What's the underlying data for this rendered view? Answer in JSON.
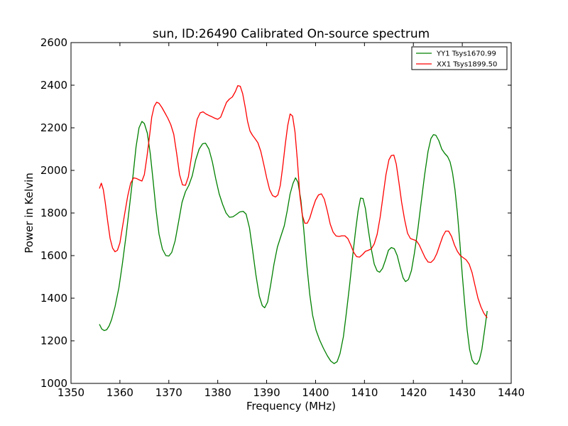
{
  "chart_data": {
    "type": "line",
    "title": "sun, ID:26490 Calibrated On-source spectrum",
    "xlabel": "Frequency (MHz)",
    "ylabel": "Power in Kelvin",
    "xlim": [
      1350,
      1440
    ],
    "ylim": [
      1000,
      2600
    ],
    "xticks": [
      1350,
      1360,
      1370,
      1380,
      1390,
      1400,
      1410,
      1420,
      1430,
      1440
    ],
    "yticks": [
      1000,
      1200,
      1400,
      1600,
      1800,
      2000,
      2200,
      2400,
      2600
    ],
    "grid": false,
    "legend_position": "top-right",
    "series": [
      {
        "name": "YY1 Tsys1670.99",
        "color": "#008000",
        "points": [
          [
            1355.8,
            1278
          ],
          [
            1356.3,
            1255
          ],
          [
            1356.8,
            1248
          ],
          [
            1357.3,
            1252
          ],
          [
            1357.8,
            1270
          ],
          [
            1358.3,
            1300
          ],
          [
            1359.0,
            1360
          ],
          [
            1359.8,
            1450
          ],
          [
            1360.5,
            1560
          ],
          [
            1361.3,
            1700
          ],
          [
            1362.0,
            1840
          ],
          [
            1362.7,
            1980
          ],
          [
            1363.3,
            2110
          ],
          [
            1363.9,
            2200
          ],
          [
            1364.5,
            2230
          ],
          [
            1365.0,
            2220
          ],
          [
            1365.6,
            2175
          ],
          [
            1366.2,
            2080
          ],
          [
            1366.8,
            1950
          ],
          [
            1367.4,
            1810
          ],
          [
            1368.0,
            1700
          ],
          [
            1368.7,
            1630
          ],
          [
            1369.4,
            1600
          ],
          [
            1370.0,
            1598
          ],
          [
            1370.6,
            1615
          ],
          [
            1371.3,
            1670
          ],
          [
            1372.0,
            1760
          ],
          [
            1372.7,
            1850
          ],
          [
            1373.4,
            1900
          ],
          [
            1374.1,
            1930
          ],
          [
            1374.8,
            1975
          ],
          [
            1375.5,
            2050
          ],
          [
            1376.2,
            2100
          ],
          [
            1376.9,
            2125
          ],
          [
            1377.5,
            2128
          ],
          [
            1378.2,
            2100
          ],
          [
            1378.9,
            2040
          ],
          [
            1379.6,
            1960
          ],
          [
            1380.3,
            1890
          ],
          [
            1381.0,
            1840
          ],
          [
            1381.7,
            1800
          ],
          [
            1382.4,
            1780
          ],
          [
            1383.1,
            1782
          ],
          [
            1383.8,
            1793
          ],
          [
            1384.5,
            1805
          ],
          [
            1385.2,
            1808
          ],
          [
            1385.8,
            1795
          ],
          [
            1386.5,
            1730
          ],
          [
            1387.1,
            1630
          ],
          [
            1387.8,
            1510
          ],
          [
            1388.5,
            1410
          ],
          [
            1389.1,
            1365
          ],
          [
            1389.6,
            1355
          ],
          [
            1390.2,
            1382
          ],
          [
            1390.8,
            1460
          ],
          [
            1391.5,
            1560
          ],
          [
            1392.2,
            1640
          ],
          [
            1392.9,
            1690
          ],
          [
            1393.6,
            1740
          ],
          [
            1394.2,
            1810
          ],
          [
            1394.8,
            1890
          ],
          [
            1395.4,
            1940
          ],
          [
            1395.9,
            1965
          ],
          [
            1396.4,
            1945
          ],
          [
            1397.0,
            1860
          ],
          [
            1397.6,
            1720
          ],
          [
            1398.2,
            1560
          ],
          [
            1398.8,
            1420
          ],
          [
            1399.4,
            1320
          ],
          [
            1400.1,
            1250
          ],
          [
            1400.8,
            1205
          ],
          [
            1401.6,
            1165
          ],
          [
            1402.4,
            1130
          ],
          [
            1403.1,
            1105
          ],
          [
            1403.8,
            1093
          ],
          [
            1404.4,
            1102
          ],
          [
            1405.0,
            1140
          ],
          [
            1405.7,
            1220
          ],
          [
            1406.3,
            1330
          ],
          [
            1407.0,
            1470
          ],
          [
            1407.6,
            1600
          ],
          [
            1408.2,
            1720
          ],
          [
            1408.7,
            1810
          ],
          [
            1409.2,
            1870
          ],
          [
            1409.7,
            1868
          ],
          [
            1410.2,
            1820
          ],
          [
            1410.8,
            1720
          ],
          [
            1411.4,
            1630
          ],
          [
            1412.0,
            1560
          ],
          [
            1412.6,
            1528
          ],
          [
            1413.1,
            1522
          ],
          [
            1413.7,
            1540
          ],
          [
            1414.3,
            1580
          ],
          [
            1414.9,
            1625
          ],
          [
            1415.5,
            1638
          ],
          [
            1416.1,
            1632
          ],
          [
            1416.7,
            1600
          ],
          [
            1417.3,
            1545
          ],
          [
            1417.9,
            1495
          ],
          [
            1418.4,
            1478
          ],
          [
            1419.0,
            1488
          ],
          [
            1419.6,
            1530
          ],
          [
            1420.2,
            1610
          ],
          [
            1420.9,
            1720
          ],
          [
            1421.6,
            1850
          ],
          [
            1422.3,
            1980
          ],
          [
            1423.0,
            2090
          ],
          [
            1423.6,
            2150
          ],
          [
            1424.1,
            2168
          ],
          [
            1424.6,
            2165
          ],
          [
            1425.2,
            2140
          ],
          [
            1425.8,
            2100
          ],
          [
            1426.4,
            2080
          ],
          [
            1427.0,
            2065
          ],
          [
            1427.5,
            2040
          ],
          [
            1428.0,
            1990
          ],
          [
            1428.5,
            1910
          ],
          [
            1429.0,
            1800
          ],
          [
            1429.5,
            1660
          ],
          [
            1430.0,
            1510
          ],
          [
            1430.5,
            1370
          ],
          [
            1431.0,
            1250
          ],
          [
            1431.5,
            1160
          ],
          [
            1432.0,
            1110
          ],
          [
            1432.5,
            1093
          ],
          [
            1433.0,
            1090
          ],
          [
            1433.5,
            1110
          ],
          [
            1434.0,
            1160
          ],
          [
            1434.5,
            1240
          ],
          [
            1435.1,
            1340
          ]
        ]
      },
      {
        "name": "XX1 Tsys1899.50",
        "color": "#ff0000",
        "points": [
          [
            1355.8,
            1915
          ],
          [
            1356.2,
            1940
          ],
          [
            1356.6,
            1910
          ],
          [
            1357.0,
            1850
          ],
          [
            1357.5,
            1760
          ],
          [
            1358.0,
            1680
          ],
          [
            1358.5,
            1635
          ],
          [
            1359.0,
            1618
          ],
          [
            1359.5,
            1625
          ],
          [
            1360.0,
            1660
          ],
          [
            1360.5,
            1730
          ],
          [
            1361.0,
            1800
          ],
          [
            1361.6,
            1880
          ],
          [
            1362.2,
            1940
          ],
          [
            1362.8,
            1965
          ],
          [
            1363.4,
            1962
          ],
          [
            1364.0,
            1955
          ],
          [
            1364.5,
            1950
          ],
          [
            1365.0,
            1980
          ],
          [
            1365.5,
            2060
          ],
          [
            1366.0,
            2150
          ],
          [
            1366.5,
            2250
          ],
          [
            1367.0,
            2300
          ],
          [
            1367.5,
            2320
          ],
          [
            1368.0,
            2315
          ],
          [
            1368.6,
            2295
          ],
          [
            1369.2,
            2270
          ],
          [
            1369.8,
            2245
          ],
          [
            1370.4,
            2215
          ],
          [
            1371.0,
            2170
          ],
          [
            1371.6,
            2080
          ],
          [
            1372.2,
            1980
          ],
          [
            1372.8,
            1932
          ],
          [
            1373.4,
            1930
          ],
          [
            1374.0,
            1970
          ],
          [
            1374.6,
            2060
          ],
          [
            1375.2,
            2160
          ],
          [
            1375.8,
            2240
          ],
          [
            1376.4,
            2270
          ],
          [
            1377.0,
            2275
          ],
          [
            1377.6,
            2265
          ],
          [
            1378.2,
            2258
          ],
          [
            1378.8,
            2252
          ],
          [
            1379.4,
            2245
          ],
          [
            1380.0,
            2240
          ],
          [
            1380.6,
            2250
          ],
          [
            1381.2,
            2285
          ],
          [
            1381.8,
            2320
          ],
          [
            1382.4,
            2335
          ],
          [
            1383.0,
            2345
          ],
          [
            1383.6,
            2370
          ],
          [
            1384.1,
            2398
          ],
          [
            1384.6,
            2395
          ],
          [
            1385.1,
            2360
          ],
          [
            1385.6,
            2300
          ],
          [
            1386.1,
            2230
          ],
          [
            1386.6,
            2185
          ],
          [
            1387.1,
            2165
          ],
          [
            1387.6,
            2150
          ],
          [
            1388.2,
            2130
          ],
          [
            1388.8,
            2090
          ],
          [
            1389.4,
            2030
          ],
          [
            1390.0,
            1965
          ],
          [
            1390.6,
            1910
          ],
          [
            1391.2,
            1882
          ],
          [
            1391.8,
            1875
          ],
          [
            1392.3,
            1885
          ],
          [
            1392.8,
            1930
          ],
          [
            1393.3,
            2020
          ],
          [
            1393.8,
            2120
          ],
          [
            1394.3,
            2210
          ],
          [
            1394.8,
            2265
          ],
          [
            1395.3,
            2255
          ],
          [
            1395.8,
            2180
          ],
          [
            1396.3,
            2040
          ],
          [
            1396.8,
            1880
          ],
          [
            1397.3,
            1790
          ],
          [
            1397.8,
            1752
          ],
          [
            1398.3,
            1752
          ],
          [
            1398.8,
            1775
          ],
          [
            1399.4,
            1820
          ],
          [
            1400.0,
            1860
          ],
          [
            1400.6,
            1885
          ],
          [
            1401.2,
            1890
          ],
          [
            1401.8,
            1865
          ],
          [
            1402.4,
            1810
          ],
          [
            1403.0,
            1748
          ],
          [
            1403.6,
            1710
          ],
          [
            1404.2,
            1692
          ],
          [
            1404.8,
            1690
          ],
          [
            1405.4,
            1693
          ],
          [
            1406.0,
            1693
          ],
          [
            1406.6,
            1680
          ],
          [
            1407.2,
            1650
          ],
          [
            1407.8,
            1615
          ],
          [
            1408.4,
            1595
          ],
          [
            1409.0,
            1593
          ],
          [
            1409.6,
            1605
          ],
          [
            1410.2,
            1620
          ],
          [
            1410.8,
            1625
          ],
          [
            1411.4,
            1632
          ],
          [
            1412.0,
            1655
          ],
          [
            1412.6,
            1700
          ],
          [
            1413.2,
            1780
          ],
          [
            1413.8,
            1880
          ],
          [
            1414.4,
            1980
          ],
          [
            1415.0,
            2050
          ],
          [
            1415.5,
            2070
          ],
          [
            1416.0,
            2072
          ],
          [
            1416.5,
            2030
          ],
          [
            1417.0,
            1950
          ],
          [
            1417.6,
            1850
          ],
          [
            1418.2,
            1770
          ],
          [
            1418.8,
            1705
          ],
          [
            1419.4,
            1680
          ],
          [
            1420.0,
            1675
          ],
          [
            1420.6,
            1670
          ],
          [
            1421.2,
            1650
          ],
          [
            1421.8,
            1620
          ],
          [
            1422.4,
            1590
          ],
          [
            1423.0,
            1570
          ],
          [
            1423.6,
            1568
          ],
          [
            1424.2,
            1582
          ],
          [
            1424.8,
            1610
          ],
          [
            1425.4,
            1650
          ],
          [
            1426.0,
            1690
          ],
          [
            1426.6,
            1715
          ],
          [
            1427.2,
            1715
          ],
          [
            1427.8,
            1690
          ],
          [
            1428.4,
            1650
          ],
          [
            1429.0,
            1620
          ],
          [
            1429.6,
            1600
          ],
          [
            1430.2,
            1590
          ],
          [
            1430.8,
            1580
          ],
          [
            1431.4,
            1560
          ],
          [
            1432.0,
            1520
          ],
          [
            1432.6,
            1460
          ],
          [
            1433.2,
            1400
          ],
          [
            1433.8,
            1360
          ],
          [
            1434.4,
            1330
          ],
          [
            1435.1,
            1308
          ]
        ]
      }
    ]
  }
}
